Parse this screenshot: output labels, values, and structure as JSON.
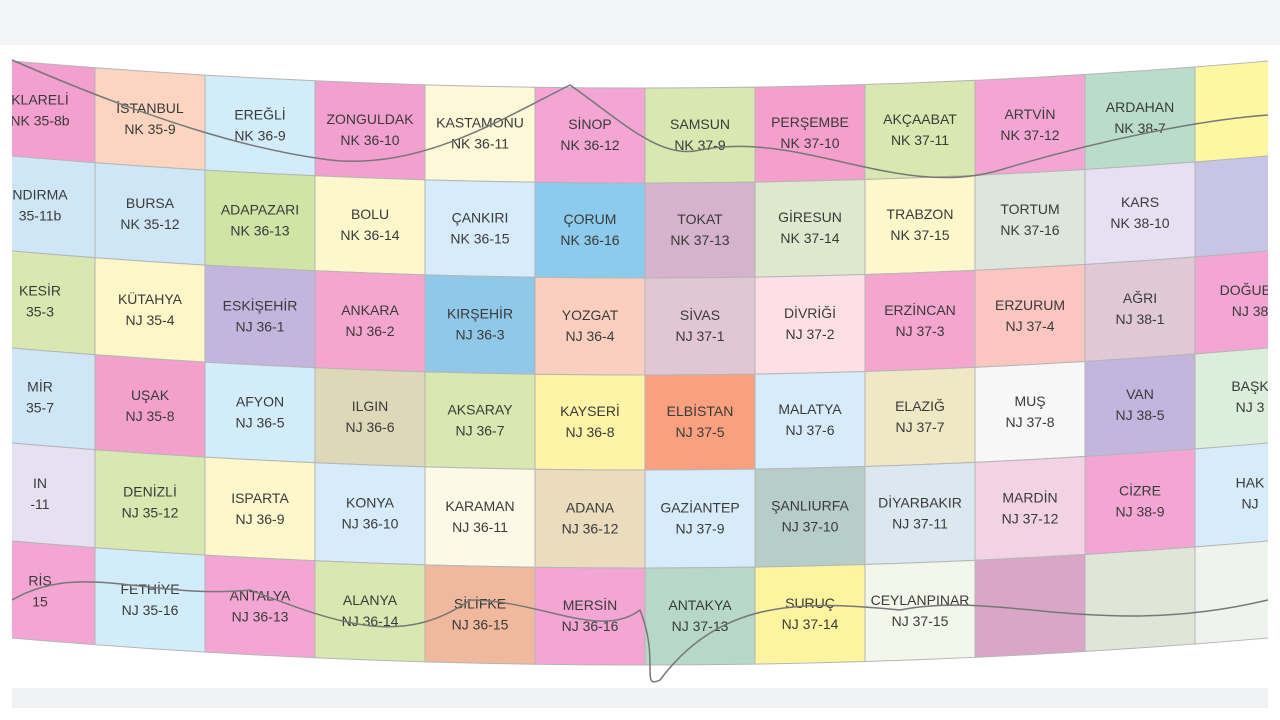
{
  "map": {
    "rows": [
      [
        {
          "name": "KLARELİ",
          "code": "NK 35-8b",
          "color": "#f39fd0"
        },
        {
          "name": "İSTANBUL",
          "code": "NK 35-9",
          "color": "#fbd5c0"
        },
        {
          "name": "EREĞLİ",
          "code": "NK 36-9",
          "color": "#d3ecfa"
        },
        {
          "name": "ZONGULDAK",
          "code": "NK 36-10",
          "color": "#f2a0cf"
        },
        {
          "name": "KASTAMONU",
          "code": "NK 36-11",
          "color": "#fdf8d8"
        },
        {
          "name": "SİNOP",
          "code": "NK 36-12",
          "color": "#f3a6d4"
        },
        {
          "name": "SAMSUN",
          "code": "NK 37-9",
          "color": "#d8e8b0"
        },
        {
          "name": "PERŞEMBE",
          "code": "NK 37-10",
          "color": "#f5a0cc"
        },
        {
          "name": "AKÇAABAT",
          "code": "NK 37-11",
          "color": "#d8e8b0"
        },
        {
          "name": "ARTVİN",
          "code": "NK 37-12",
          "color": "#f3a6d4"
        },
        {
          "name": "ARDAHAN",
          "code": "NK 38-7",
          "color": "#b9dccb"
        },
        {
          "color": "#fcf7a0"
        }
      ],
      [
        {
          "name": "NDIRMA",
          "code": "35-11b",
          "color": "#cfe6f7"
        },
        {
          "name": "BURSA",
          "code": "NK 35-12",
          "color": "#cfe6f7"
        },
        {
          "name": "ADAPAZARI",
          "code": "NK 36-13",
          "color": "#cfe4a5"
        },
        {
          "name": "BOLU",
          "code": "NK 36-14",
          "color": "#fdf7cc"
        },
        {
          "name": "ÇANKIRI",
          "code": "NK 36-15",
          "color": "#d6ecfa"
        },
        {
          "name": "ÇORUM",
          "code": "NK 36-16",
          "color": "#8ccbeb"
        },
        {
          "name": "TOKAT",
          "code": "NK 37-13",
          "color": "#d5b3cc"
        },
        {
          "name": "GİRESUN",
          "code": "NK 37-14",
          "color": "#dde8cc"
        },
        {
          "name": "TRABZON",
          "code": "NK 37-15",
          "color": "#fdf8cc"
        },
        {
          "name": "TORTUM",
          "code": "NK 37-16",
          "color": "#dde5dc"
        },
        {
          "name": "KARS",
          "code": "NK 38-10",
          "color": "#e6e0f3"
        },
        {
          "color": "#c8c4e6"
        }
      ],
      [
        {
          "name": "KESİR",
          "code": "35-3",
          "color": "#d8e8b0"
        },
        {
          "name": "KÜTAHYA",
          "code": "NJ 35-4",
          "color": "#fdf7c8"
        },
        {
          "name": "ESKİŞEHİR",
          "code": "NJ 36-1",
          "color": "#c4b5de"
        },
        {
          "name": "ANKARA",
          "code": "NJ 36-2",
          "color": "#f5a6cf"
        },
        {
          "name": "KIRŞEHİR",
          "code": "NJ 36-3",
          "color": "#8fc8e8"
        },
        {
          "name": "YOZGAT",
          "code": "NJ 36-4",
          "color": "#fbcfc0"
        },
        {
          "name": "SİVAS",
          "code": "NJ 37-1",
          "color": "#e1c6d3"
        },
        {
          "name": "DİVRİĞİ",
          "code": "NJ 37-2",
          "color": "#fde0e6"
        },
        {
          "name": "ERZİNCAN",
          "code": "NJ 37-3",
          "color": "#f4a6cf"
        },
        {
          "name": "ERZURUM",
          "code": "NJ 37-4",
          "color": "#fbc6bf"
        },
        {
          "name": "AĞRI",
          "code": "NJ 38-1",
          "color": "#e0c8d5"
        },
        {
          "name": "DOĞUBA",
          "code": "NJ 38",
          "color": "#f3a6d4"
        }
      ],
      [
        {
          "name": "MİR",
          "code": "35-7",
          "color": "#cfe6f7"
        },
        {
          "name": "UŞAK",
          "code": "NJ 35-8",
          "color": "#f3a0cb"
        },
        {
          "name": "AFYON",
          "code": "NJ 36-5",
          "color": "#d3ecfa"
        },
        {
          "name": "ILGIN",
          "code": "NJ 36-6",
          "color": "#dcd8b8"
        },
        {
          "name": "AKSARAY",
          "code": "NJ 36-7",
          "color": "#d8e8b0"
        },
        {
          "name": "KAYSERİ",
          "code": "NJ 36-8",
          "color": "#fdf4a8"
        },
        {
          "name": "ELBİSTAN",
          "code": "NJ 37-5",
          "color": "#f9a07e"
        },
        {
          "name": "MALATYA",
          "code": "NJ 37-6",
          "color": "#d6ecfa"
        },
        {
          "name": "ELAZIĞ",
          "code": "NJ 37-7",
          "color": "#efe8c4"
        },
        {
          "name": "MUŞ",
          "code": "NJ 37-8",
          "color": "#f7f7f7"
        },
        {
          "name": "VAN",
          "code": "NJ 38-5",
          "color": "#c4b5de"
        },
        {
          "name": "BAŞK",
          "code": "NJ 3",
          "color": "#dbeedc"
        }
      ],
      [
        {
          "name": "IN",
          "code": "-11",
          "color": "#e6e0f3"
        },
        {
          "name": "DENİZLİ",
          "code": "NJ 35-12",
          "color": "#d8e8b0"
        },
        {
          "name": "ISPARTA",
          "code": "NJ 36-9",
          "color": "#fdf7cc"
        },
        {
          "name": "KONYA",
          "code": "NJ 36-10",
          "color": "#d6ecfa"
        },
        {
          "name": "KARAMAN",
          "code": "NJ 36-11",
          "color": "#fcfae6"
        },
        {
          "name": "ADANA",
          "code": "NJ 36-12",
          "color": "#ecdcbe"
        },
        {
          "name": "GAZİANTEP",
          "code": "NJ 37-9",
          "color": "#d6ecfa"
        },
        {
          "name": "ŞANLIURFA",
          "code": "NJ 37-10",
          "color": "#b7cdc8"
        },
        {
          "name": "DİYARBAKIR",
          "code": "NJ 37-11",
          "color": "#dce8f0"
        },
        {
          "name": "MARDİN",
          "code": "NJ 37-12",
          "color": "#f1d3e3"
        },
        {
          "name": "CİZRE",
          "code": "NJ 38-9",
          "color": "#f3a6d4"
        },
        {
          "name": "HAK",
          "code": "NJ",
          "color": "#d6ecfa"
        }
      ],
      [
        {
          "name": "RİS",
          "code": "15",
          "color": "#f3a6d4"
        },
        {
          "name": "FETHİYE",
          "code": "NJ 35-16",
          "color": "#d3ecfa"
        },
        {
          "name": "ANTALYA",
          "code": "NJ 36-13",
          "color": "#f3a6d4"
        },
        {
          "name": "ALANYA",
          "code": "NJ 36-14",
          "color": "#d8e8b0"
        },
        {
          "name": "SİLİFKE",
          "code": "NJ 36-15",
          "color": "#f0b89c"
        },
        {
          "name": "MERSİN",
          "code": "NJ 36-16",
          "color": "#f3a6d4"
        },
        {
          "name": "ANTAKYA",
          "code": "NJ 37-13",
          "color": "#b7d8c8"
        },
        {
          "name": "SURUÇ",
          "code": "NJ 37-14",
          "color": "#fdf4a0"
        },
        {
          "name": "CEYLANPINAR",
          "code": "NJ 37-15",
          "color": "#f3f6ea"
        },
        {
          "color": "#d9a6c8"
        },
        {
          "color": "#dfe6d8"
        },
        {
          "color": "#eef3ee"
        }
      ]
    ]
  }
}
